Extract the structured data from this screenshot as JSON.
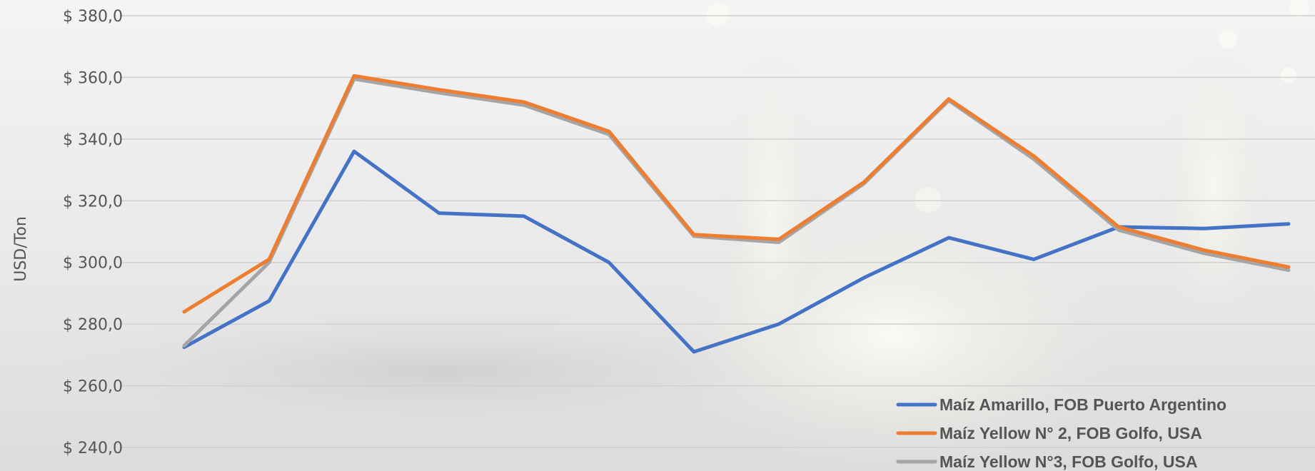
{
  "chart_data": {
    "type": "line",
    "title": "",
    "xlabel": "",
    "ylabel": "USD/Ton",
    "ylim": [
      240,
      380
    ],
    "y_ticks": [
      240,
      260,
      280,
      300,
      320,
      340,
      360,
      380
    ],
    "y_tick_labels": [
      "$ 240,0",
      "$ 260,0",
      "$ 280,0",
      "$ 300,0",
      "$ 320,0",
      "$ 340,0",
      "$ 360,0",
      "$ 380,0"
    ],
    "x": [
      1,
      2,
      3,
      4,
      5,
      6,
      7,
      8,
      9,
      10,
      11,
      12,
      13,
      14
    ],
    "grid": true,
    "legend_position": "bottom-right",
    "series": [
      {
        "name": "Maíz Amarillo, FOB Puerto Argentino",
        "color": "#4472c4",
        "values": [
          272.5,
          287.5,
          336,
          316,
          315,
          300,
          271,
          280,
          295,
          308,
          301,
          311.5,
          311,
          312.5
        ]
      },
      {
        "name": "Maíz Yellow N° 2, FOB Golfo, USA",
        "color": "#ed7d31",
        "values": [
          284,
          301,
          360.5,
          356,
          352,
          342.5,
          309,
          307.5,
          326,
          353,
          334.5,
          311.5,
          304,
          298.5
        ]
      },
      {
        "name": "Maíz Yellow N°3, FOB Golfo, USA",
        "color": "#a5a5a5",
        "values": [
          273,
          300,
          359.5,
          355,
          351,
          341.5,
          308.5,
          306.5,
          325.5,
          352.5,
          333.5,
          310.5,
          303,
          297.5
        ]
      }
    ]
  }
}
